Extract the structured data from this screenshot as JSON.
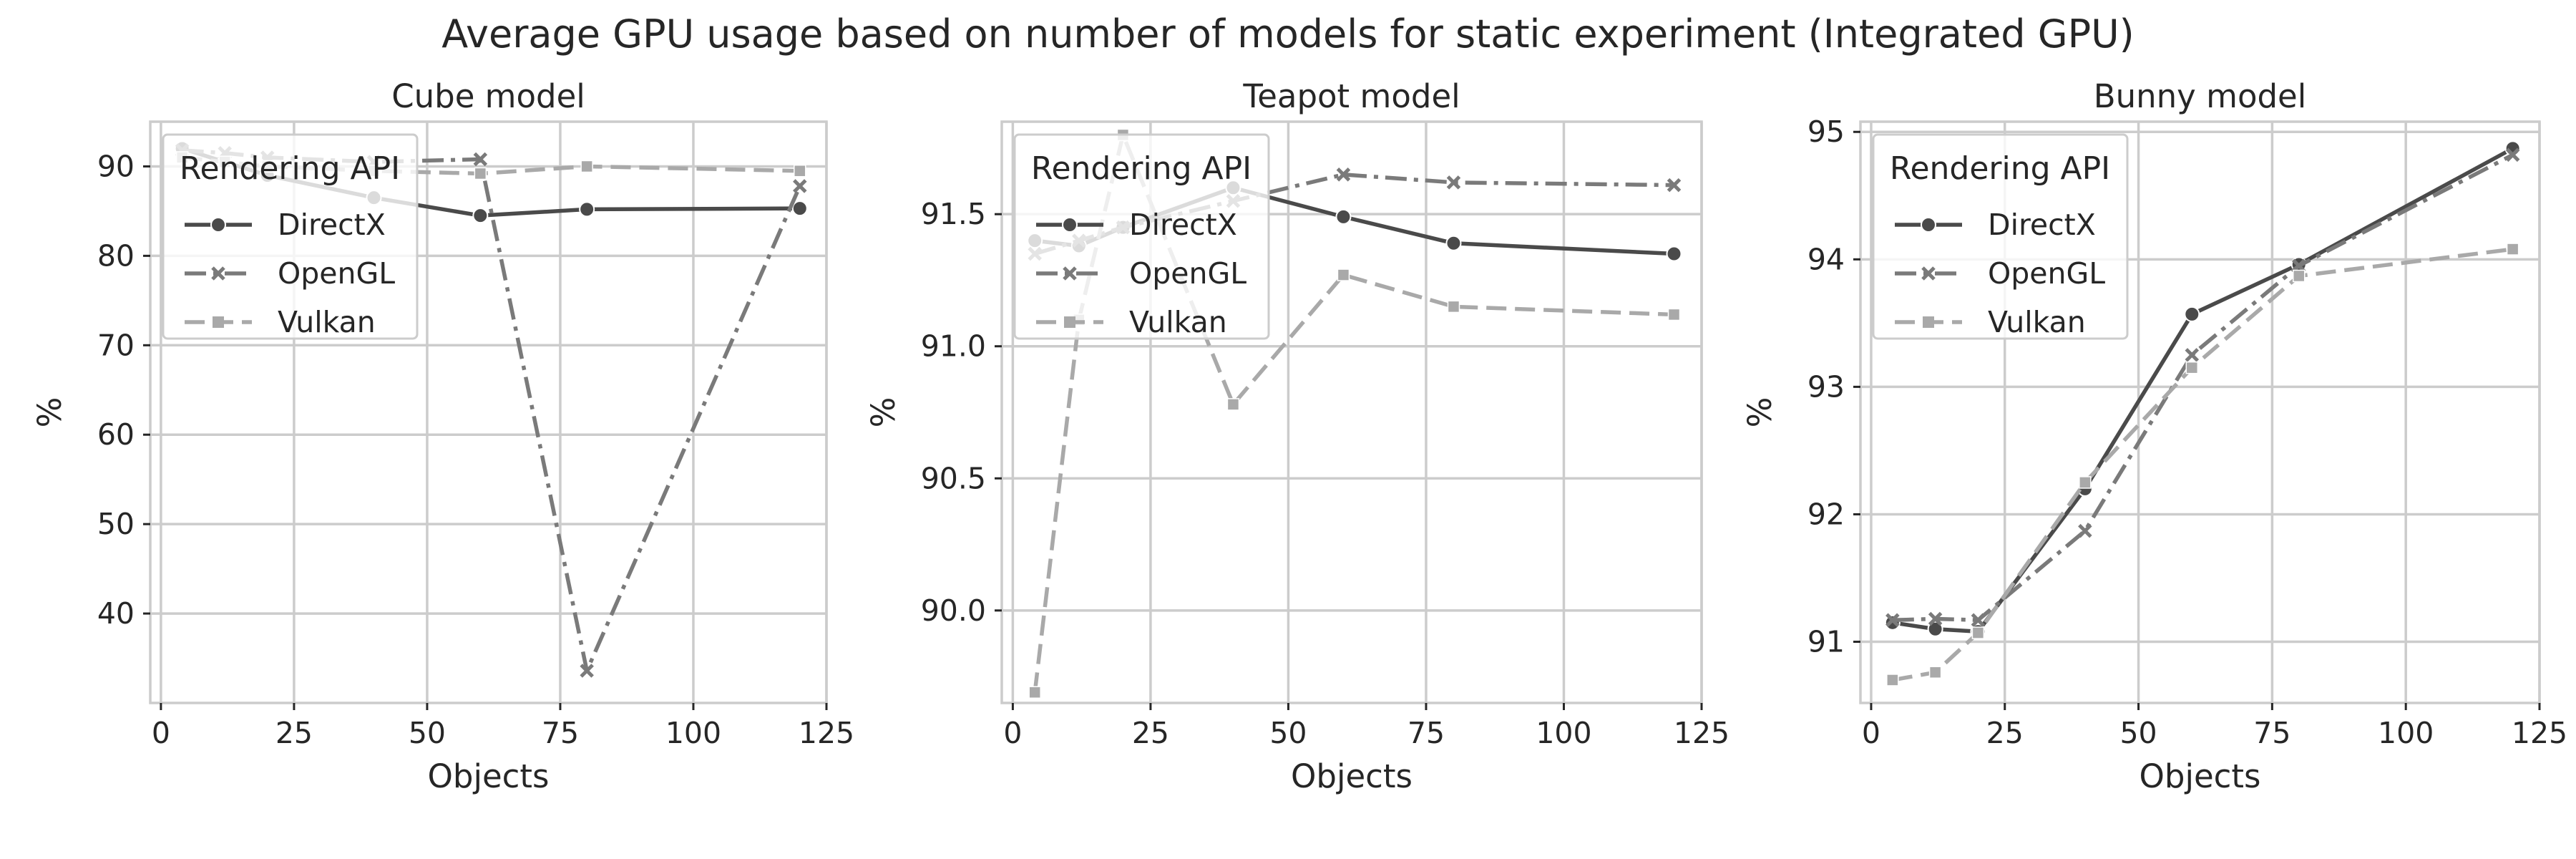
{
  "figure": {
    "title": "Average GPU usage based on number of models for static experiment (Integrated GPU)"
  },
  "legend": {
    "title": "Rendering API"
  },
  "series_styles": [
    {
      "name": "DirectX",
      "color": "#4a4a4a",
      "marker": "circle",
      "dash": "solid"
    },
    {
      "name": "OpenGL",
      "color": "#7a7a7a",
      "marker": "x",
      "dash": "dashdot"
    },
    {
      "name": "Vulkan",
      "color": "#a9a9a9",
      "marker": "square",
      "dash": "dashed"
    }
  ],
  "chart_data": [
    {
      "type": "line",
      "title": "Cube model",
      "xlabel": "Objects",
      "ylabel": "%",
      "xlim": [
        -2,
        125
      ],
      "ylim": [
        30,
        95
      ],
      "xticks": [
        0,
        25,
        50,
        75,
        100,
        125
      ],
      "yticks": [
        40,
        50,
        60,
        70,
        80,
        90
      ],
      "ytick_labels": [
        "40",
        "50",
        "60",
        "70",
        "80",
        "90"
      ],
      "grid": true,
      "legend_position": "upper left",
      "x": [
        4,
        12,
        20,
        40,
        60,
        80,
        120
      ],
      "series": [
        {
          "name": "DirectX",
          "values": [
            92.0,
            90.5,
            89.0,
            86.5,
            84.5,
            85.2,
            85.3
          ]
        },
        {
          "name": "OpenGL",
          "values": [
            91.8,
            91.5,
            91.0,
            90.5,
            90.8,
            33.6,
            87.8
          ]
        },
        {
          "name": "Vulkan",
          "values": [
            91.0,
            90.5,
            90.0,
            89.5,
            89.2,
            90.0,
            89.5
          ]
        }
      ]
    },
    {
      "type": "line",
      "title": "Teapot model",
      "xlabel": "Objects",
      "ylabel": "%",
      "xlim": [
        -2,
        125
      ],
      "ylim": [
        89.65,
        91.85
      ],
      "xticks": [
        0,
        25,
        50,
        75,
        100,
        125
      ],
      "yticks": [
        90.0,
        90.5,
        91.0,
        91.5
      ],
      "ytick_labels": [
        "90.0",
        "90.5",
        "91.0",
        "91.5"
      ],
      "grid": true,
      "legend_position": "upper left",
      "x": [
        4,
        12,
        20,
        40,
        60,
        80,
        120
      ],
      "series": [
        {
          "name": "DirectX",
          "values": [
            91.4,
            91.38,
            91.45,
            91.6,
            91.49,
            91.39,
            91.35
          ]
        },
        {
          "name": "OpenGL",
          "values": [
            91.35,
            91.4,
            91.45,
            91.55,
            91.65,
            91.62,
            91.61
          ]
        },
        {
          "name": "Vulkan",
          "values": [
            89.69,
            91.1,
            91.8,
            90.78,
            91.27,
            91.15,
            91.12
          ]
        }
      ]
    },
    {
      "type": "line",
      "title": "Bunny model",
      "xlabel": "Objects",
      "ylabel": "%",
      "xlim": [
        -2,
        125
      ],
      "ylim": [
        90.52,
        95.08
      ],
      "xticks": [
        0,
        25,
        50,
        75,
        100,
        125
      ],
      "yticks": [
        91,
        92,
        93,
        94,
        95
      ],
      "ytick_labels": [
        "91",
        "92",
        "93",
        "94",
        "95"
      ],
      "grid": true,
      "legend_position": "upper left",
      "x": [
        4,
        12,
        20,
        40,
        60,
        80,
        120
      ],
      "series": [
        {
          "name": "DirectX",
          "values": [
            91.15,
            91.1,
            91.08,
            92.2,
            93.57,
            93.96,
            94.87
          ]
        },
        {
          "name": "OpenGL",
          "values": [
            91.17,
            91.18,
            91.17,
            91.87,
            93.25,
            93.95,
            94.82
          ]
        },
        {
          "name": "Vulkan",
          "values": [
            90.7,
            90.76,
            91.07,
            92.25,
            93.15,
            93.87,
            94.08
          ]
        }
      ]
    }
  ]
}
